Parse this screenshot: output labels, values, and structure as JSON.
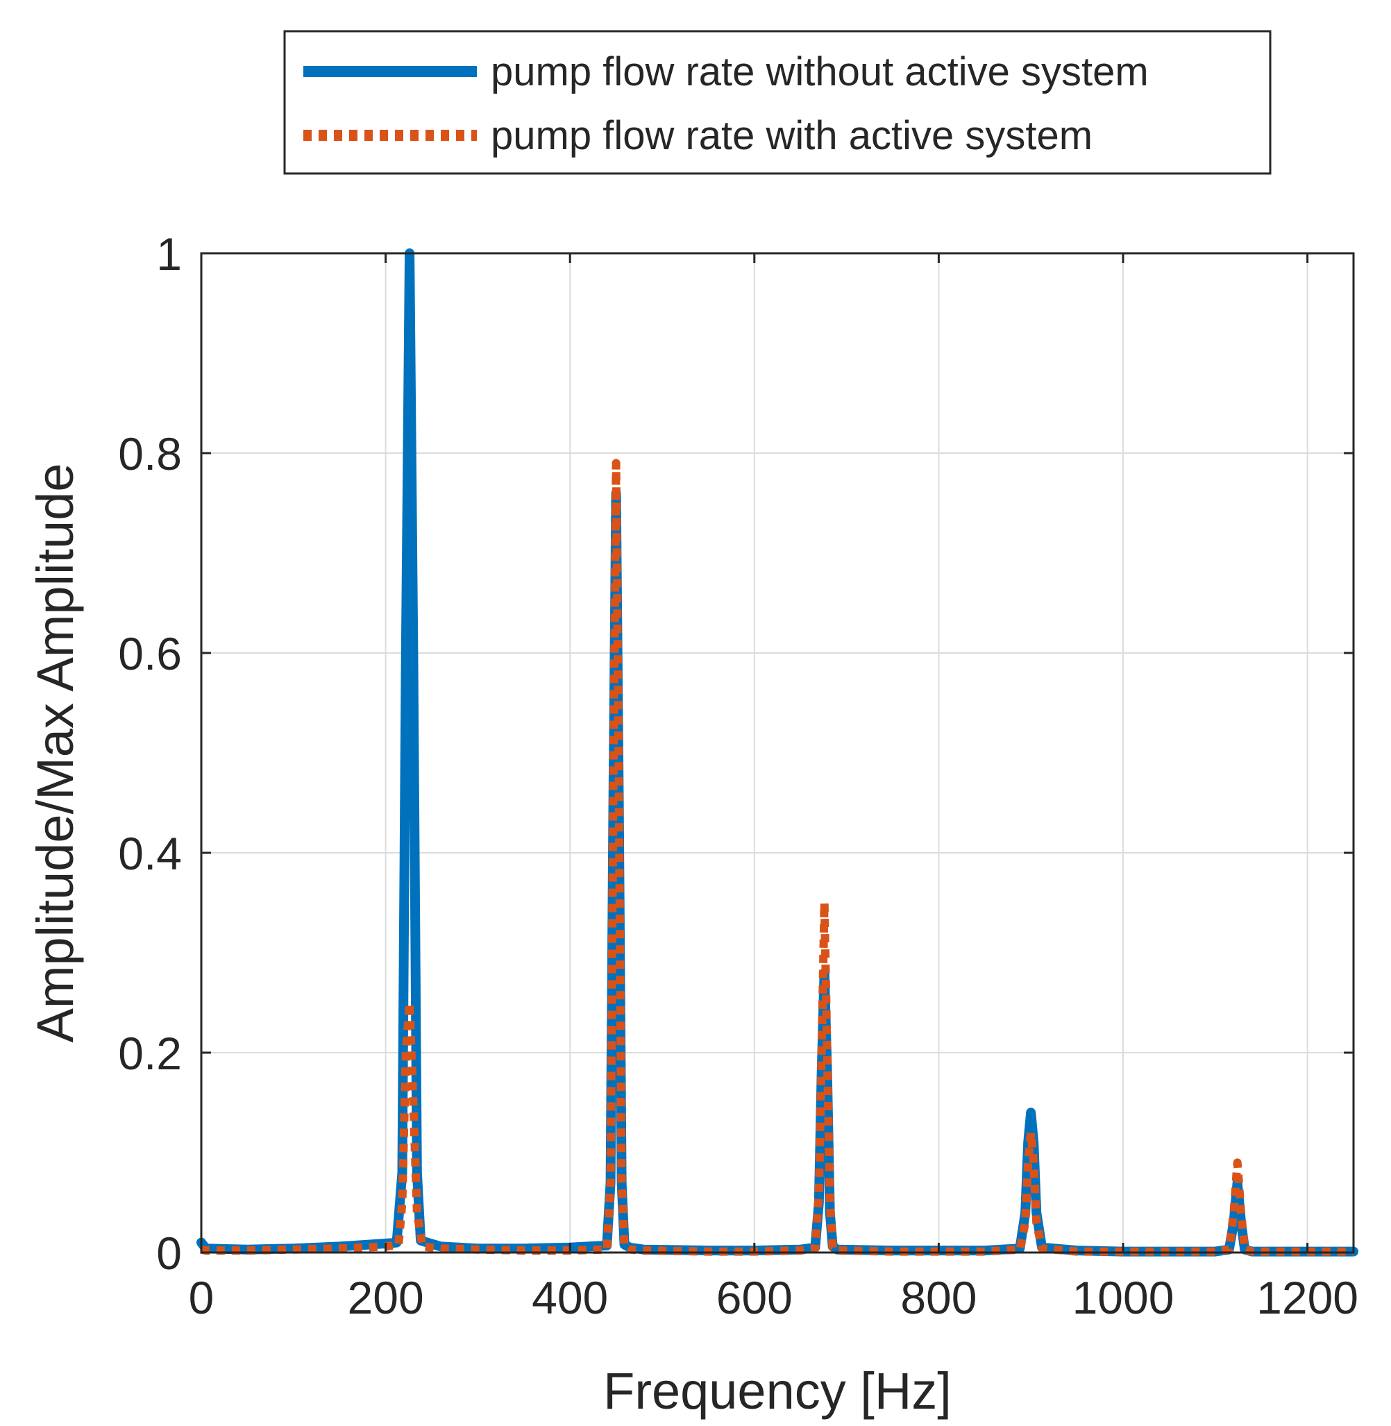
{
  "chart_data": {
    "type": "line",
    "xlabel": "Frequency [Hz]",
    "ylabel": "Amplitude/Max Amplitude",
    "xlim": [
      0,
      1250
    ],
    "ylim": [
      0,
      1
    ],
    "xticks": [
      0,
      200,
      400,
      600,
      800,
      1000,
      1200
    ],
    "xtick_labels": [
      "0",
      "200",
      "400",
      "600",
      "800",
      "1000",
      "1200"
    ],
    "yticks": [
      0,
      0.2,
      0.4,
      0.6,
      0.8,
      1
    ],
    "ytick_labels": [
      "0",
      "0.2",
      "0.4",
      "0.6",
      "0.8",
      "1"
    ],
    "grid": true,
    "legend_position": "top (outside, above plot)",
    "series": [
      {
        "name": "pump flow rate without active system",
        "color": "#0072BD",
        "style": "solid",
        "x": [
          0,
          5,
          50,
          100,
          150,
          200,
          212,
          218,
          222,
          226,
          230,
          234,
          238,
          245,
          260,
          300,
          350,
          400,
          440,
          444,
          447,
          450,
          453,
          456,
          459,
          465,
          480,
          550,
          600,
          650,
          666,
          670,
          673,
          676,
          679,
          682,
          685,
          690,
          750,
          800,
          850,
          888,
          894,
          897,
          900,
          903,
          906,
          912,
          950,
          1000,
          1050,
          1100,
          1115,
          1120,
          1124,
          1128,
          1132,
          1140,
          1200,
          1250
        ],
        "y": [
          0.01,
          0.004,
          0.003,
          0.004,
          0.006,
          0.009,
          0.01,
          0.08,
          0.6,
          1.0,
          0.6,
          0.08,
          0.012,
          0.01,
          0.006,
          0.004,
          0.004,
          0.005,
          0.007,
          0.07,
          0.45,
          0.76,
          0.45,
          0.07,
          0.008,
          0.005,
          0.003,
          0.002,
          0.002,
          0.003,
          0.005,
          0.05,
          0.18,
          0.28,
          0.18,
          0.04,
          0.006,
          0.003,
          0.002,
          0.002,
          0.002,
          0.004,
          0.04,
          0.11,
          0.14,
          0.11,
          0.04,
          0.005,
          0.002,
          0.001,
          0.001,
          0.001,
          0.003,
          0.03,
          0.07,
          0.03,
          0.003,
          0.001,
          0.001,
          0.001
        ]
      },
      {
        "name": "pump flow rate with active system",
        "color": "#D95319",
        "style": "dotted",
        "x": [
          0,
          5,
          50,
          100,
          150,
          200,
          214,
          218,
          222,
          226,
          230,
          234,
          240,
          260,
          300,
          350,
          400,
          440,
          444,
          447,
          450,
          453,
          456,
          459,
          465,
          480,
          550,
          600,
          650,
          666,
          670,
          673,
          676,
          679,
          682,
          685,
          690,
          750,
          800,
          850,
          888,
          894,
          897,
          900,
          903,
          906,
          912,
          950,
          1000,
          1050,
          1100,
          1115,
          1120,
          1124,
          1128,
          1132,
          1140,
          1200,
          1250
        ],
        "y": [
          0.003,
          0.002,
          0.002,
          0.003,
          0.004,
          0.006,
          0.008,
          0.05,
          0.2,
          0.25,
          0.15,
          0.04,
          0.006,
          0.004,
          0.003,
          0.002,
          0.002,
          0.003,
          0.07,
          0.47,
          0.79,
          0.47,
          0.07,
          0.006,
          0.003,
          0.002,
          0.001,
          0.001,
          0.002,
          0.004,
          0.06,
          0.2,
          0.35,
          0.2,
          0.05,
          0.005,
          0.002,
          0.001,
          0.001,
          0.001,
          0.003,
          0.03,
          0.09,
          0.12,
          0.09,
          0.03,
          0.004,
          0.001,
          0.001,
          0.001,
          0.001,
          0.003,
          0.04,
          0.09,
          0.04,
          0.003,
          0.001,
          0.001,
          0.001
        ]
      }
    ]
  }
}
